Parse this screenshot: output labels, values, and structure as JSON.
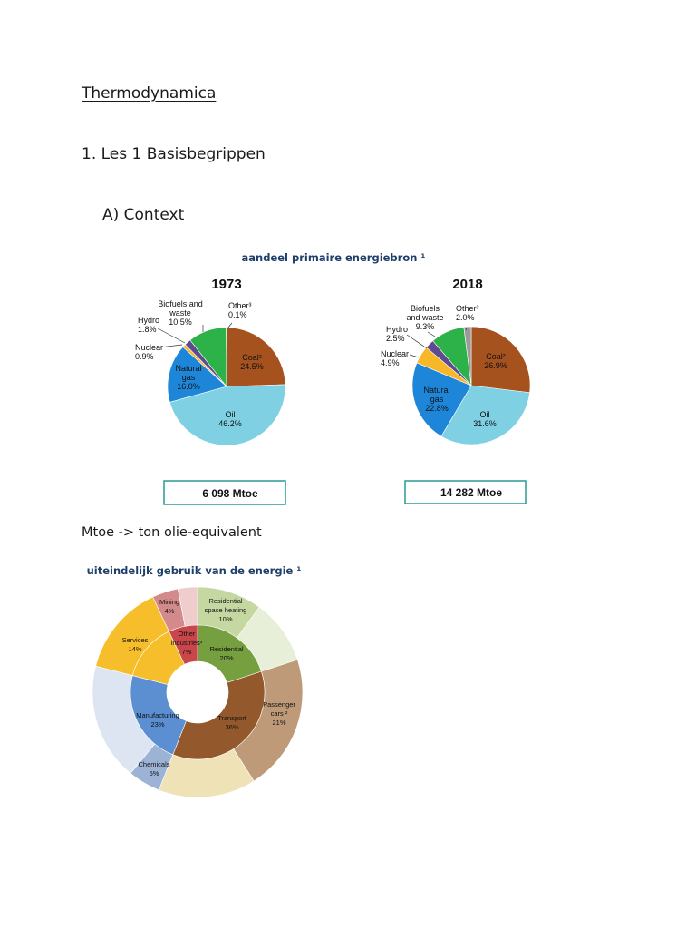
{
  "document": {
    "title": "Thermodynamica",
    "section": "1. Les 1 Basisbegrippen",
    "subsection": "A) Context",
    "mtoe_note": "Mtoe -> ton olie-equivalent"
  },
  "chart_data": [
    {
      "type": "pie",
      "figure_title": "aandeel primaire energiebron ¹",
      "title": "1973",
      "total_label": "6 098 Mtoe",
      "slices": [
        {
          "label": "Coal²",
          "value": 24.5,
          "color": "#a5521f"
        },
        {
          "label": "Oil",
          "value": 46.2,
          "color": "#7fd0e3"
        },
        {
          "label": "Natural gas",
          "value": 16.0,
          "color": "#1e86d8"
        },
        {
          "label": "Nuclear",
          "value": 0.9,
          "color": "#f6b829"
        },
        {
          "label": "Hydro",
          "value": 1.8,
          "color": "#5d4a8f"
        },
        {
          "label": "Biofuels and waste",
          "value": 10.5,
          "color": "#2db24a"
        },
        {
          "label": "Other³",
          "value": 0.1,
          "color": "#9a9a9a"
        }
      ]
    },
    {
      "type": "pie",
      "title": "2018",
      "total_label": "14 282 Mtoe",
      "slices": [
        {
          "label": "Coal²",
          "value": 26.9,
          "color": "#a5521f"
        },
        {
          "label": "Oil",
          "value": 31.6,
          "color": "#7fd0e3"
        },
        {
          "label": "Natural gas",
          "value": 22.8,
          "color": "#1e86d8"
        },
        {
          "label": "Nuclear",
          "value": 4.9,
          "color": "#f6b829"
        },
        {
          "label": "Hydro",
          "value": 2.5,
          "color": "#5d4a8f"
        },
        {
          "label": "Biofuels and waste",
          "value": 9.3,
          "color": "#2db24a"
        },
        {
          "label": "Other³",
          "value": 2.0,
          "color": "#9a9a9a"
        }
      ]
    },
    {
      "type": "pie",
      "figure_title": "uiteindelijk gebruik van de energie ¹",
      "inner": [
        {
          "label": "Residential",
          "value": 20,
          "color": "#76a040"
        },
        {
          "label": "Transport",
          "value": 36,
          "color": "#93592c"
        },
        {
          "label": "Manufacturing",
          "value": 23,
          "color": "#5b8fd2"
        },
        {
          "label": "Services",
          "value": 14,
          "color": "#f7be2b"
        },
        {
          "label": "Other industries³",
          "value": 7,
          "color": "#c9474b"
        }
      ],
      "outer": [
        {
          "label": "Residential space heating",
          "value": 10,
          "color": "#c6d8a1"
        },
        {
          "label": "",
          "value": 10,
          "color": "#e7efd9"
        },
        {
          "label": "Passenger cars ²",
          "value": 21,
          "color": "#bf9a78"
        },
        {
          "label": "",
          "value": 15,
          "color": "#efe2b6"
        },
        {
          "label": "Chemicals",
          "value": 5,
          "color": "#9db3d6"
        },
        {
          "label": "",
          "value": 18,
          "color": "#dce5f1"
        },
        {
          "label": "Services",
          "value": 14,
          "color": "#f7be2b"
        },
        {
          "label": "Mining",
          "value": 4,
          "color": "#d48a8a"
        },
        {
          "label": "",
          "value": 3,
          "color": "#f0cdcd"
        }
      ],
      "labels": {
        "residential": [
          "Residential",
          "20%"
        ],
        "transport": [
          "Transport",
          "36%"
        ],
        "manufacturing": [
          "Manufacturing",
          "23%"
        ],
        "services": [
          "Services",
          "14%"
        ],
        "other": [
          "Other",
          "industries³",
          "7%"
        ],
        "space_heating": [
          "Residential",
          "space heating",
          "10%"
        ],
        "cars": [
          "Passenger",
          "cars ²",
          "21%"
        ],
        "chemicals": [
          "Chemicals",
          "5%"
        ],
        "mining": [
          "Mining",
          "4%"
        ]
      }
    }
  ]
}
